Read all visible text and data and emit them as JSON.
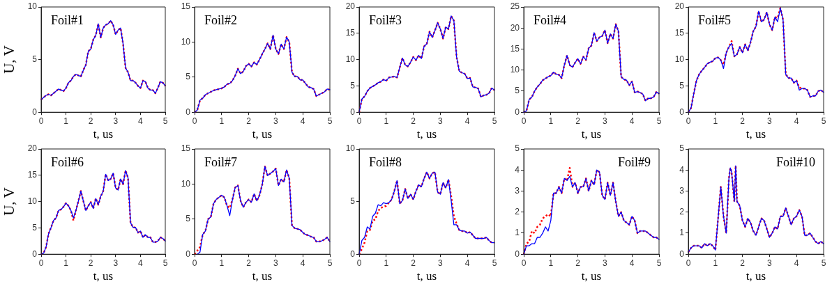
{
  "chart_data": [
    {
      "type": "line",
      "title": "Foil#1",
      "xlabel": "t, us",
      "ylabel": "U, V",
      "xlim": [
        0,
        5
      ],
      "xticks": [
        0,
        1,
        2,
        3,
        4,
        5
      ],
      "ylim": [
        0,
        10
      ],
      "yticks": [
        0,
        5,
        10
      ],
      "x": [
        0,
        0.1,
        0.2,
        0.3,
        0.4,
        0.5,
        0.6,
        0.7,
        0.8,
        0.9,
        1,
        1.1,
        1.2,
        1.3,
        1.4,
        1.5,
        1.6,
        1.7,
        1.8,
        1.9,
        2,
        2.1,
        2.2,
        2.3,
        2.4,
        2.5,
        2.6,
        2.7,
        2.8,
        2.9,
        3,
        3.1,
        3.2,
        3.3,
        3.4,
        3.5,
        3.6,
        3.7,
        3.8,
        3.9,
        4,
        4.1,
        4.2,
        4.3,
        4.4,
        4.5,
        4.6,
        4.7,
        4.8,
        4.9,
        5
      ],
      "series": [
        {
          "color": "#0000ff",
          "line_style": "solid",
          "values": [
            1.2,
            1.4,
            1.6,
            1.7,
            1.6,
            1.8,
            2.0,
            2.2,
            2.1,
            2.0,
            2.3,
            2.8,
            3.0,
            3.4,
            3.6,
            3.5,
            3.4,
            4.0,
            4.5,
            5.8,
            6.0,
            6.9,
            7.3,
            8.4,
            7.1,
            8.0,
            8.3,
            8.4,
            8.7,
            8.3,
            7.4,
            7.8,
            8.0,
            6.5,
            4.2,
            3.8,
            3.0,
            3.0,
            2.8,
            2.5,
            2.3,
            3.0,
            2.9,
            2.3,
            2.1,
            2.1,
            1.8,
            2.3,
            2.9,
            2.8,
            2.5
          ]
        },
        {
          "color": "#ff0000",
          "line_style": "dotted",
          "values": [
            1.2,
            1.4,
            1.6,
            1.7,
            1.6,
            1.8,
            2.0,
            2.2,
            2.1,
            2.0,
            2.3,
            2.8,
            3.0,
            3.4,
            3.6,
            3.5,
            3.4,
            4.0,
            4.5,
            5.8,
            6.0,
            6.9,
            7.3,
            8.4,
            7.1,
            8.0,
            8.3,
            8.4,
            8.7,
            8.3,
            7.4,
            7.8,
            8.0,
            6.5,
            4.2,
            3.8,
            3.0,
            3.0,
            2.8,
            2.5,
            2.3,
            3.0,
            2.9,
            2.3,
            2.1,
            2.1,
            1.8,
            2.3,
            2.9,
            2.8,
            2.5
          ]
        }
      ]
    },
    {
      "type": "line",
      "title": "Foil#2",
      "xlabel": "t, us",
      "xlim": [
        0,
        5
      ],
      "xticks": [
        0,
        1,
        2,
        3,
        4,
        5
      ],
      "ylim": [
        0,
        15
      ],
      "yticks": [
        0,
        5,
        10,
        15
      ],
      "x": [
        0,
        0.1,
        0.2,
        0.3,
        0.4,
        0.5,
        0.6,
        0.7,
        0.8,
        0.9,
        1,
        1.1,
        1.2,
        1.3,
        1.4,
        1.5,
        1.6,
        1.7,
        1.8,
        1.9,
        2,
        2.1,
        2.2,
        2.3,
        2.4,
        2.5,
        2.6,
        2.7,
        2.8,
        2.9,
        3,
        3.1,
        3.2,
        3.3,
        3.4,
        3.5,
        3.6,
        3.7,
        3.8,
        3.9,
        4,
        4.1,
        4.2,
        4.3,
        4.4,
        4.5,
        4.6,
        4.7,
        4.8,
        4.9,
        5
      ],
      "series": [
        {
          "color": "#0000ff",
          "line_style": "solid",
          "values": [
            0,
            0.3,
            1.7,
            2.0,
            2.5,
            2.7,
            2.9,
            3.1,
            3.2,
            3.3,
            3.4,
            3.6,
            4.0,
            4.1,
            4.5,
            5.2,
            6.2,
            5.5,
            5.8,
            6.6,
            6.9,
            6.5,
            7.1,
            6.8,
            7.5,
            8.3,
            9.0,
            9.8,
            9.0,
            11.0,
            9.0,
            8.3,
            9.7,
            9.0,
            10.7,
            10.0,
            5.7,
            5.1,
            5.1,
            4.6,
            4.6,
            4.1,
            3.6,
            3.5,
            3.3,
            2.3,
            2.5,
            2.7,
            2.9,
            3.3,
            3.2
          ]
        },
        {
          "color": "#ff0000",
          "line_style": "dotted",
          "values": [
            0,
            0.3,
            1.7,
            2.0,
            2.5,
            2.7,
            2.9,
            3.1,
            3.2,
            3.3,
            3.4,
            3.6,
            4.0,
            4.1,
            4.5,
            5.2,
            6.2,
            5.5,
            5.8,
            6.6,
            6.9,
            6.5,
            7.1,
            6.8,
            7.5,
            8.3,
            9.0,
            9.8,
            9.0,
            11.0,
            9.0,
            8.3,
            9.7,
            9.0,
            10.7,
            10.0,
            5.7,
            5.1,
            5.1,
            4.6,
            4.6,
            4.1,
            3.6,
            3.5,
            3.3,
            2.3,
            2.5,
            2.7,
            2.9,
            3.3,
            3.2
          ]
        }
      ]
    },
    {
      "type": "line",
      "title": "Foil#3",
      "xlabel": "t, us",
      "xlim": [
        0,
        5
      ],
      "xticks": [
        0,
        1,
        2,
        3,
        4,
        5
      ],
      "ylim": [
        0,
        20
      ],
      "yticks": [
        0,
        5,
        10,
        15,
        20
      ],
      "x": [
        0,
        0.1,
        0.2,
        0.3,
        0.4,
        0.5,
        0.6,
        0.7,
        0.8,
        0.9,
        1,
        1.1,
        1.2,
        1.3,
        1.4,
        1.5,
        1.6,
        1.7,
        1.8,
        1.9,
        2,
        2.1,
        2.2,
        2.3,
        2.4,
        2.5,
        2.6,
        2.7,
        2.8,
        2.9,
        3,
        3.1,
        3.2,
        3.3,
        3.4,
        3.5,
        3.6,
        3.7,
        3.8,
        3.9,
        4,
        4.1,
        4.2,
        4.3,
        4.4,
        4.5,
        4.6,
        4.7,
        4.8,
        4.9,
        5
      ],
      "series": [
        {
          "color": "#0000ff",
          "line_style": "solid",
          "values": [
            0,
            2.5,
            3.0,
            4.0,
            4.6,
            4.9,
            5.2,
            5.6,
            5.8,
            6.2,
            6.0,
            6.6,
            6.7,
            6.8,
            6.6,
            8.5,
            10.3,
            9.0,
            8.7,
            9.5,
            10.5,
            9.9,
            10.8,
            10.2,
            12.5,
            13.0,
            15.3,
            14.2,
            15.5,
            17.0,
            15.8,
            14.0,
            16.2,
            15.8,
            18.3,
            17.4,
            10.5,
            7.8,
            7.5,
            7.3,
            6.4,
            6.5,
            4.8,
            4.7,
            4.5,
            2.9,
            3.2,
            3.3,
            3.6,
            4.6,
            4.2
          ]
        },
        {
          "color": "#ff0000",
          "line_style": "dotted",
          "values": [
            0,
            2.5,
            3.0,
            4.0,
            4.6,
            4.9,
            5.2,
            5.6,
            5.8,
            6.2,
            6.0,
            6.6,
            6.7,
            6.8,
            6.6,
            8.5,
            10.3,
            9.0,
            8.7,
            9.5,
            10.5,
            9.9,
            10.8,
            10.2,
            12.5,
            13.0,
            15.3,
            14.2,
            15.5,
            17.0,
            15.8,
            14.0,
            16.2,
            15.8,
            18.3,
            17.4,
            10.5,
            7.8,
            7.5,
            7.3,
            6.4,
            6.5,
            4.8,
            4.7,
            4.5,
            2.9,
            3.2,
            3.3,
            3.6,
            4.6,
            4.2
          ]
        }
      ]
    },
    {
      "type": "line",
      "title": "Foil#4",
      "xlabel": "t, us",
      "xlim": [
        0,
        5
      ],
      "xticks": [
        0,
        1,
        2,
        3,
        4,
        5
      ],
      "ylim": [
        0,
        25
      ],
      "yticks": [
        0,
        5,
        10,
        15,
        20,
        25
      ],
      "x": [
        0,
        0.1,
        0.2,
        0.3,
        0.4,
        0.5,
        0.6,
        0.7,
        0.8,
        0.9,
        1,
        1.1,
        1.2,
        1.3,
        1.4,
        1.5,
        1.6,
        1.7,
        1.8,
        1.9,
        2,
        2.1,
        2.2,
        2.3,
        2.4,
        2.5,
        2.6,
        2.7,
        2.8,
        2.9,
        3,
        3.1,
        3.2,
        3.3,
        3.4,
        3.5,
        3.6,
        3.7,
        3.8,
        3.9,
        4,
        4.1,
        4.2,
        4.3,
        4.4,
        4.5,
        4.6,
        4.7,
        4.8,
        4.9,
        5
      ],
      "series": [
        {
          "color": "#0000ff",
          "line_style": "solid",
          "values": [
            0,
            0.3,
            3.0,
            3.6,
            5.0,
            6.0,
            6.7,
            7.6,
            8.0,
            8.4,
            8.7,
            9.5,
            9.0,
            8.9,
            8.1,
            11.2,
            13.5,
            11.2,
            10.7,
            11.8,
            12.7,
            11.5,
            13.2,
            12.4,
            15.2,
            15.8,
            18.9,
            16.9,
            17.8,
            18.1,
            19.5,
            16.4,
            18.6,
            17.5,
            20.9,
            19.2,
            8.4,
            7.8,
            7.6,
            6.4,
            7.3,
            4.7,
            4.9,
            4.7,
            4.3,
            2.7,
            3.3,
            3.3,
            3.6,
            4.8,
            4.4
          ]
        },
        {
          "color": "#ff0000",
          "line_style": "dotted",
          "values": [
            0,
            0.3,
            3.0,
            3.6,
            5.0,
            6.0,
            6.7,
            7.6,
            8.0,
            8.4,
            8.7,
            9.5,
            9.0,
            8.9,
            8.1,
            11.2,
            13.5,
            11.2,
            10.7,
            11.8,
            12.7,
            11.5,
            13.2,
            12.4,
            15.2,
            15.8,
            18.9,
            16.9,
            17.8,
            18.1,
            19.5,
            16.4,
            18.6,
            17.5,
            20.9,
            19.2,
            8.4,
            7.8,
            7.6,
            6.4,
            7.3,
            4.7,
            4.9,
            4.7,
            4.3,
            2.7,
            3.3,
            3.3,
            3.6,
            4.8,
            4.4
          ]
        }
      ]
    },
    {
      "type": "line",
      "title": "Foil#5",
      "xlabel": "t, us",
      "xlim": [
        0,
        5
      ],
      "xticks": [
        0,
        1,
        2,
        3,
        4,
        5
      ],
      "ylim": [
        0,
        20
      ],
      "yticks": [
        0,
        5,
        10,
        15,
        20
      ],
      "x": [
        0,
        0.1,
        0.2,
        0.3,
        0.4,
        0.5,
        0.6,
        0.7,
        0.8,
        0.9,
        1,
        1.1,
        1.2,
        1.3,
        1.4,
        1.5,
        1.6,
        1.7,
        1.8,
        1.9,
        2,
        2.1,
        2.2,
        2.3,
        2.4,
        2.5,
        2.6,
        2.7,
        2.8,
        2.9,
        3,
        3.1,
        3.2,
        3.3,
        3.4,
        3.5,
        3.6,
        3.7,
        3.8,
        3.9,
        4,
        4.1,
        4.2,
        4.3,
        4.4,
        4.5,
        4.6,
        4.7,
        4.8,
        4.9,
        5
      ],
      "series": [
        {
          "color": "#0000ff",
          "line_style": "solid",
          "values": [
            0,
            0.8,
            3.5,
            6.0,
            7.2,
            7.9,
            8.5,
            9.2,
            9.5,
            9.7,
            10.3,
            10.4,
            9.9,
            8.3,
            11.3,
            12.4,
            13.1,
            10.6,
            11.0,
            12.4,
            11.3,
            12.9,
            11.7,
            13.3,
            15.4,
            16.3,
            19.2,
            17.2,
            17.6,
            19.0,
            16.7,
            15.6,
            18.1,
            17.2,
            19.8,
            17.6,
            7.2,
            6.5,
            6.5,
            5.6,
            6.0,
            4.2,
            4.5,
            4.5,
            4.2,
            2.9,
            3.1,
            3.1,
            4.0,
            4.2,
            3.8
          ]
        },
        {
          "color": "#ff0000",
          "line_style": "dotted",
          "values": [
            0,
            0.8,
            3.5,
            6.0,
            7.2,
            7.9,
            8.5,
            9.2,
            9.5,
            9.7,
            10.3,
            10.4,
            9.9,
            9.0,
            11.3,
            12.4,
            13.5,
            10.6,
            11.0,
            12.4,
            11.3,
            12.9,
            11.7,
            13.3,
            15.4,
            16.3,
            19.2,
            17.2,
            17.6,
            19.0,
            16.7,
            15.6,
            18.1,
            17.9,
            19.8,
            17.6,
            7.2,
            6.5,
            6.5,
            5.6,
            6.0,
            4.7,
            4.5,
            4.5,
            4.2,
            2.9,
            3.1,
            3.1,
            4.0,
            4.2,
            3.8
          ]
        }
      ]
    },
    {
      "type": "line",
      "title": "Foil#6",
      "xlabel": "t, us",
      "ylabel": "U, V",
      "xlim": [
        0,
        5
      ],
      "xticks": [
        0,
        1,
        2,
        3,
        4,
        5
      ],
      "ylim": [
        0,
        20
      ],
      "yticks": [
        0,
        5,
        10,
        15,
        20
      ],
      "x": [
        0,
        0.1,
        0.2,
        0.3,
        0.4,
        0.5,
        0.6,
        0.7,
        0.8,
        0.9,
        1,
        1.1,
        1.2,
        1.3,
        1.4,
        1.5,
        1.6,
        1.7,
        1.8,
        1.9,
        2,
        2.1,
        2.2,
        2.3,
        2.4,
        2.5,
        2.6,
        2.7,
        2.8,
        2.9,
        3,
        3.1,
        3.2,
        3.3,
        3.4,
        3.5,
        3.6,
        3.7,
        3.8,
        3.9,
        4,
        4.1,
        4.2,
        4.3,
        4.4,
        4.5,
        4.6,
        4.7,
        4.8,
        4.9,
        5
      ],
      "series": [
        {
          "color": "#0000ff",
          "line_style": "solid",
          "values": [
            0,
            0.2,
            1.4,
            3.9,
            5.1,
            6.4,
            6.9,
            8.3,
            8.5,
            9.0,
            9.7,
            9.2,
            8.3,
            6.9,
            8.3,
            10.1,
            12.0,
            10.1,
            8.3,
            9.2,
            9.9,
            8.7,
            10.6,
            9.4,
            11.0,
            12.0,
            15.2,
            14.0,
            14.3,
            15.4,
            12.6,
            12.2,
            14.3,
            13.3,
            15.9,
            14.5,
            6.0,
            5.1,
            5.1,
            4.1,
            4.4,
            3.2,
            3.7,
            3.2,
            3.2,
            2.3,
            2.3,
            2.5,
            3.2,
            3.0,
            2.5
          ]
        },
        {
          "color": "#ff0000",
          "line_style": "dotted",
          "values": [
            0,
            0.2,
            1.4,
            3.9,
            5.1,
            6.4,
            6.9,
            8.3,
            8.5,
            9.0,
            9.7,
            9.2,
            8.3,
            6.4,
            8.3,
            10.1,
            12.0,
            10.1,
            8.3,
            9.2,
            9.9,
            8.7,
            10.6,
            9.4,
            11.0,
            12.0,
            15.2,
            14.0,
            14.3,
            15.4,
            12.6,
            12.2,
            14.3,
            13.3,
            15.9,
            14.5,
            6.0,
            5.1,
            5.1,
            4.1,
            4.4,
            3.2,
            3.7,
            3.2,
            3.2,
            2.3,
            2.3,
            2.5,
            3.2,
            3.0,
            2.5
          ]
        }
      ]
    },
    {
      "type": "line",
      "title": "Foil#7",
      "xlabel": "t, us",
      "xlim": [
        0,
        5
      ],
      "xticks": [
        0,
        1,
        2,
        3,
        4,
        5
      ],
      "ylim": [
        0,
        15
      ],
      "yticks": [
        0,
        5,
        10,
        15
      ],
      "x": [
        0,
        0.1,
        0.2,
        0.3,
        0.4,
        0.5,
        0.6,
        0.7,
        0.8,
        0.9,
        1,
        1.1,
        1.2,
        1.3,
        1.4,
        1.5,
        1.6,
        1.7,
        1.8,
        1.9,
        2,
        2.1,
        2.2,
        2.3,
        2.4,
        2.5,
        2.6,
        2.7,
        2.8,
        2.9,
        3,
        3.1,
        3.2,
        3.3,
        3.4,
        3.5,
        3.6,
        3.7,
        3.8,
        3.9,
        4,
        4.1,
        4.2,
        4.3,
        4.4,
        4.5,
        4.6,
        4.7,
        4.8,
        4.9,
        5
      ],
      "series": [
        {
          "color": "#0000ff",
          "line_style": "solid",
          "values": [
            null,
            0,
            0.3,
            2.8,
            3.3,
            5.0,
            5.3,
            7.2,
            7.8,
            8.1,
            8.4,
            8.1,
            6.9,
            5.5,
            7.8,
            9.5,
            9.8,
            7.6,
            6.7,
            7.4,
            7.8,
            7.4,
            8.6,
            7.6,
            8.4,
            9.9,
            12.5,
            11.2,
            11.5,
            11.8,
            12.2,
            9.8,
            10.7,
            10.3,
            12.0,
            10.8,
            4.1,
            3.7,
            3.6,
            3.5,
            3.1,
            2.8,
            2.7,
            2.5,
            2.4,
            1.8,
            1.8,
            1.9,
            2.1,
            2.4,
            1.8
          ]
        },
        {
          "color": "#ff0000",
          "line_style": "dotted",
          "values": [
            0,
            0.5,
            1.0,
            2.8,
            3.3,
            5.0,
            5.3,
            7.2,
            7.8,
            8.1,
            8.4,
            8.1,
            6.9,
            6.6,
            7.8,
            9.5,
            9.8,
            7.6,
            6.7,
            7.4,
            7.8,
            7.4,
            8.6,
            7.6,
            8.4,
            9.9,
            12.5,
            11.2,
            11.5,
            11.8,
            12.2,
            9.8,
            10.7,
            10.3,
            12.0,
            10.8,
            4.1,
            3.7,
            3.6,
            3.5,
            3.1,
            2.8,
            2.7,
            2.5,
            2.4,
            1.8,
            1.8,
            1.9,
            2.1,
            2.4,
            1.8
          ]
        }
      ]
    },
    {
      "type": "line",
      "title": "Foil#8",
      "xlabel": "t, us",
      "xlim": [
        0,
        5
      ],
      "xticks": [
        0,
        1,
        2,
        3,
        4,
        5
      ],
      "ylim": [
        0,
        10
      ],
      "yticks": [
        0,
        5,
        10
      ],
      "x": [
        0,
        0.1,
        0.2,
        0.3,
        0.4,
        0.5,
        0.6,
        0.7,
        0.8,
        0.9,
        1,
        1.1,
        1.2,
        1.3,
        1.4,
        1.5,
        1.6,
        1.7,
        1.8,
        1.9,
        2,
        2.1,
        2.2,
        2.3,
        2.4,
        2.5,
        2.6,
        2.7,
        2.8,
        2.9,
        3,
        3.1,
        3.2,
        3.3,
        3.4,
        3.5,
        3.6,
        3.7,
        3.8,
        3.9,
        4,
        4.1,
        4.2,
        4.3,
        4.4,
        4.5,
        4.6,
        4.7,
        4.8,
        4.9,
        5
      ],
      "series": [
        {
          "color": "#0000ff",
          "line_style": "solid",
          "values": [
            0,
            1.3,
            1.6,
            2.6,
            2.4,
            3.6,
            3.9,
            4.7,
            4.6,
            4.9,
            4.8,
            4.9,
            5.2,
            6.0,
            7.0,
            4.8,
            5.1,
            6.2,
            5.3,
            5.7,
            5.2,
            6.0,
            6.6,
            6.4,
            7.2,
            7.8,
            7.2,
            7.7,
            7.8,
            5.9,
            5.7,
            6.8,
            6.3,
            7.1,
            5.1,
            2.8,
            2.8,
            2.3,
            2.2,
            2.2,
            2.0,
            2.1,
            1.8,
            1.5,
            1.5,
            1.5,
            1.5,
            1.6,
            1.3,
            1.1,
            1.1
          ]
        },
        {
          "color": "#ff0000",
          "line_style": "dotted",
          "values": [
            0,
            0.5,
            1.1,
            2.2,
            2.3,
            3.2,
            3.3,
            4.1,
            4.4,
            4.5,
            4.6,
            4.9,
            5.2,
            6.0,
            7.0,
            4.8,
            5.1,
            6.2,
            5.3,
            5.7,
            5.2,
            6.0,
            6.6,
            6.4,
            7.2,
            7.8,
            7.2,
            7.7,
            7.8,
            5.9,
            5.7,
            6.8,
            6.3,
            7.1,
            5.5,
            3.6,
            2.9,
            2.3,
            2.2,
            2.2,
            2.0,
            2.1,
            1.8,
            1.5,
            1.5,
            1.5,
            1.5,
            1.6,
            1.3,
            1.1,
            1.1
          ]
        }
      ]
    },
    {
      "type": "line",
      "title": "Foil#9",
      "xlabel": "t, us",
      "xlim": [
        0,
        5
      ],
      "xticks": [
        0,
        1,
        2,
        3,
        4,
        5
      ],
      "ylim": [
        0,
        5
      ],
      "yticks": [
        0,
        1,
        2,
        3,
        4,
        5
      ],
      "x": [
        0,
        0.1,
        0.2,
        0.3,
        0.4,
        0.5,
        0.6,
        0.7,
        0.8,
        0.9,
        1,
        1.1,
        1.2,
        1.3,
        1.4,
        1.5,
        1.6,
        1.7,
        1.8,
        1.9,
        2,
        2.1,
        2.2,
        2.3,
        2.4,
        2.5,
        2.6,
        2.7,
        2.8,
        2.9,
        3,
        3.1,
        3.2,
        3.3,
        3.4,
        3.5,
        3.6,
        3.7,
        3.8,
        3.9,
        4,
        4.1,
        4.2,
        4.3,
        4.4,
        4.5,
        4.6,
        4.7,
        4.8,
        4.9,
        5
      ],
      "series": [
        {
          "color": "#0000ff",
          "line_style": "solid",
          "values": [
            0,
            0.4,
            0.4,
            0.5,
            0.5,
            0.8,
            0.8,
            1.0,
            1.3,
            1.1,
            1.6,
            2.9,
            2.9,
            3.2,
            2.9,
            3.6,
            3.5,
            3.7,
            3.2,
            3.4,
            2.9,
            3.2,
            3.2,
            3.6,
            3.0,
            3.5,
            3.3,
            4.0,
            3.9,
            2.8,
            2.6,
            3.4,
            2.8,
            3.4,
            2.5,
            1.8,
            2.0,
            1.6,
            1.5,
            1.4,
            1.8,
            1.6,
            1.0,
            1.1,
            1.1,
            1.1,
            1.0,
            0.9,
            0.8,
            0.8,
            0.7
          ]
        },
        {
          "color": "#ff0000",
          "line_style": "dotted",
          "values": [
            0,
            0.5,
            0.6,
            1.1,
            1.0,
            1.3,
            1.4,
            1.7,
            1.8,
            1.9,
            1.8,
            2.9,
            2.9,
            3.2,
            2.9,
            3.6,
            3.5,
            4.1,
            3.2,
            3.4,
            2.9,
            3.2,
            3.2,
            3.6,
            3.0,
            3.5,
            3.3,
            4.0,
            3.9,
            2.8,
            2.6,
            3.4,
            2.8,
            3.4,
            2.5,
            1.8,
            2.0,
            1.6,
            1.5,
            1.4,
            1.8,
            1.6,
            1.0,
            1.1,
            1.1,
            1.1,
            1.0,
            0.9,
            0.8,
            0.8,
            0.7
          ]
        }
      ]
    },
    {
      "type": "line",
      "title": "Foil#10",
      "xlabel": "t, us",
      "xlim": [
        0,
        5
      ],
      "xticks": [
        0,
        1,
        2,
        3,
        4,
        5
      ],
      "ylim": [
        0,
        5
      ],
      "yticks": [
        0,
        1,
        2,
        3,
        4,
        5
      ],
      "x": [
        0,
        0.1,
        0.2,
        0.3,
        0.4,
        0.5,
        0.6,
        0.7,
        0.8,
        0.9,
        1,
        1.1,
        1.2,
        1.3,
        1.4,
        1.5,
        1.55,
        1.6,
        1.7,
        1.75,
        1.8,
        1.9,
        2,
        2.1,
        2.2,
        2.3,
        2.4,
        2.5,
        2.6,
        2.7,
        2.8,
        2.9,
        3,
        3.1,
        3.2,
        3.3,
        3.4,
        3.5,
        3.6,
        3.7,
        3.8,
        3.9,
        4,
        4.1,
        4.2,
        4.3,
        4.4,
        4.5,
        4.6,
        4.7,
        4.8,
        4.9,
        5
      ],
      "series": [
        {
          "color": "#0000ff",
          "line_style": "solid",
          "values": [
            0.1,
            0.3,
            0.4,
            0.4,
            0.4,
            0.3,
            0.5,
            0.4,
            0.5,
            0.4,
            0.2,
            1.7,
            3.2,
            1.8,
            1.0,
            3.6,
            4.1,
            3.9,
            2.5,
            4.2,
            2.5,
            2.3,
            1.6,
            1.3,
            1.7,
            1.5,
            1.1,
            0.9,
            1.3,
            1.7,
            1.6,
            1.2,
            0.8,
            1.0,
            1.3,
            1.2,
            1.8,
            1.8,
            2.2,
            1.8,
            1.4,
            1.7,
            1.8,
            2.1,
            1.8,
            0.9,
            0.9,
            1.0,
            0.8,
            0.6,
            0.5,
            0.6,
            0.5
          ]
        },
        {
          "color": "#ff0000",
          "line_style": "dotted",
          "values": [
            0.1,
            0.3,
            0.4,
            0.4,
            0.4,
            0.3,
            0.5,
            0.4,
            0.5,
            0.4,
            0.2,
            1.7,
            3.2,
            1.8,
            1.0,
            3.6,
            4.1,
            3.9,
            2.5,
            4.2,
            2.5,
            2.3,
            1.6,
            1.3,
            1.7,
            1.5,
            1.1,
            0.9,
            1.3,
            1.7,
            1.6,
            1.2,
            0.8,
            1.0,
            1.3,
            1.2,
            1.8,
            1.8,
            2.2,
            1.8,
            1.4,
            1.7,
            1.8,
            2.1,
            1.8,
            0.9,
            0.9,
            1.0,
            0.8,
            0.6,
            0.5,
            0.6,
            0.5
          ]
        }
      ]
    }
  ]
}
